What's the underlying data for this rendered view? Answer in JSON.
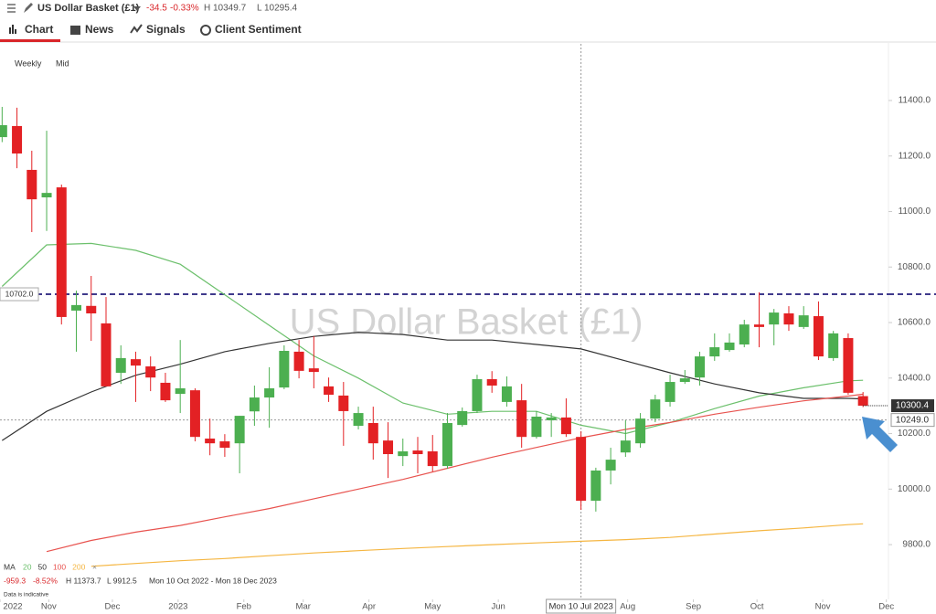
{
  "header": {
    "title": "US Dollar Basket (£1)",
    "change": "-34.5",
    "change_pct": "-0.33%",
    "high": "H 10349.7",
    "low": "L 10295.4"
  },
  "tabs": [
    "Chart",
    "News",
    "Signals",
    "Client Sentiment"
  ],
  "chart_data": {
    "type": "candlestick",
    "title": "US Dollar Basket (£1)",
    "interval": "Weekly",
    "price_basis": "Mid",
    "up_color": "#4caf50",
    "down_color": "#e32124",
    "x": [
      "2022-10-10",
      "2022-10-17",
      "2022-10-24",
      "2022-10-31",
      "2022-11-07",
      "2022-11-14",
      "2022-11-21",
      "2022-11-28",
      "2022-12-05",
      "2022-12-12",
      "2022-12-19",
      "2022-12-26",
      "2023-01-02",
      "2023-01-09",
      "2023-01-16",
      "2023-01-23",
      "2023-01-30",
      "2023-02-06",
      "2023-02-13",
      "2023-02-20",
      "2023-02-27",
      "2023-03-06",
      "2023-03-13",
      "2023-03-20",
      "2023-03-27",
      "2023-04-03",
      "2023-04-10",
      "2023-04-17",
      "2023-04-24",
      "2023-05-01",
      "2023-05-08",
      "2023-05-15",
      "2023-05-22",
      "2023-05-29",
      "2023-06-05",
      "2023-06-12",
      "2023-06-19",
      "2023-06-26",
      "2023-07-03",
      "2023-07-10",
      "2023-07-17",
      "2023-07-24",
      "2023-07-31",
      "2023-08-07",
      "2023-08-14",
      "2023-08-21",
      "2023-08-28",
      "2023-09-04",
      "2023-09-11",
      "2023-09-18",
      "2023-09-25",
      "2023-10-02",
      "2023-10-09",
      "2023-10-16",
      "2023-10-23",
      "2023-10-30",
      "2023-11-06",
      "2023-11-13",
      "2023-11-20"
    ],
    "open": [
      11268,
      11308,
      11150,
      11051,
      11087,
      10643,
      10660,
      10597,
      10419,
      10468,
      10442,
      10383,
      10343,
      10356,
      10182,
      10172,
      10165,
      10280,
      10330,
      10366,
      10495,
      10435,
      10370,
      10337,
      10228,
      10238,
      10175,
      10119,
      10139,
      10136,
      10083,
      10231,
      10281,
      10396,
      10314,
      10320,
      10188,
      10248,
      10258,
      10188,
      9958,
      10067,
      10132,
      10165,
      10254,
      10314,
      10386,
      10402,
      10478,
      10501,
      10521,
      10593,
      10593,
      10633,
      10584,
      10623,
      10472,
      10544,
      10334.9
    ],
    "close": [
      11311,
      11209,
      11044,
      11067,
      10620,
      10663,
      10633,
      10370,
      10472,
      10445,
      10402,
      10320,
      10363,
      10188,
      10165,
      10149,
      10264,
      10330,
      10363,
      10498,
      10426,
      10422,
      10340,
      10281,
      10274,
      10165,
      10126,
      10136,
      10126,
      10083,
      10238,
      10281,
      10396,
      10373,
      10370,
      10188,
      10261,
      10258,
      10198,
      9958,
      10067,
      10106,
      10175,
      10254,
      10323,
      10386,
      10399,
      10478,
      10511,
      10528,
      10593,
      10584,
      10636,
      10593,
      10626,
      10478,
      10561,
      10347,
      10300.4
    ],
    "high": [
      11377,
      11374,
      11219,
      11291,
      11097,
      10715,
      10768,
      10692,
      10518,
      10495,
      10478,
      10419,
      10537,
      10363,
      10254,
      10198,
      10264,
      10373,
      10439,
      10518,
      10537,
      10551,
      10402,
      10386,
      10297,
      10297,
      10241,
      10182,
      10188,
      10195,
      10274,
      10294,
      10412,
      10425,
      10406,
      10379,
      10281,
      10274,
      10327,
      10208,
      10077,
      10149,
      10248,
      10274,
      10340,
      10412,
      10429,
      10495,
      10561,
      10561,
      10610,
      10709,
      10649,
      10659,
      10659,
      10676,
      10570,
      10561,
      10349.7
    ],
    "low": [
      11250,
      11156,
      10926,
      10930,
      10593,
      10495,
      10534,
      10370,
      10379,
      10314,
      10353,
      10314,
      10274,
      10172,
      10122,
      10116,
      10057,
      10228,
      10221,
      10360,
      10399,
      10363,
      10314,
      10156,
      10215,
      10106,
      10040,
      10083,
      10057,
      10063,
      10073,
      10225,
      10274,
      10347,
      10297,
      10149,
      10182,
      10188,
      10188,
      9925,
      9919,
      10017,
      10116,
      10149,
      10241,
      10297,
      10379,
      10373,
      10462,
      10495,
      10511,
      10511,
      10518,
      10570,
      10577,
      10465,
      10462,
      10340,
      10295.4
    ],
    "moving_averages": {
      "label": "MA",
      "x": [
        "2022-10-10",
        "2022-10-31",
        "2022-11-21",
        "2022-12-12",
        "2023-01-02",
        "2023-01-23",
        "2023-02-13",
        "2023-03-06",
        "2023-03-27",
        "2023-04-17",
        "2023-05-08",
        "2023-05-29",
        "2023-06-19",
        "2023-07-10",
        "2023-07-31",
        "2023-08-21",
        "2023-09-11",
        "2023-10-02",
        "2023-10-23",
        "2023-11-13",
        "2023-11-20"
      ],
      "series": [
        {
          "name": "20",
          "color": "#6cc06c",
          "values": [
            10730,
            10880,
            10885,
            10860,
            10810,
            10700,
            10590,
            10480,
            10400,
            10310,
            10270,
            10280,
            10280,
            10230,
            10200,
            10240,
            10290,
            10335,
            10365,
            10390,
            10392
          ]
        },
        {
          "name": "50",
          "color": "#333333",
          "values": [
            10175,
            10280,
            10350,
            10410,
            10450,
            10495,
            10525,
            10550,
            10565,
            10557,
            10537,
            10537,
            10521,
            10505,
            10462,
            10419,
            10379,
            10347,
            10327,
            10327,
            10325
          ]
        },
        {
          "name": "100",
          "color": "#e8534f",
          "values": [
            null,
            9775,
            9815,
            9845,
            9869,
            9900,
            9930,
            9965,
            10000,
            10035,
            10075,
            10115,
            10150,
            10185,
            10215,
            10240,
            10270,
            10295,
            10318,
            10335,
            10342
          ]
        },
        {
          "name": "200",
          "color": "#f5b642",
          "values": [
            null,
            null,
            9722,
            9732,
            9742,
            9750,
            9760,
            9770,
            9778,
            9786,
            9793,
            9800,
            9806,
            9812,
            9818,
            9826,
            9838,
            9850,
            9860,
            9872,
            9875
          ]
        }
      ]
    },
    "reference_line": {
      "value": 10702,
      "label": "10702.0",
      "color": "#3f3a8c"
    },
    "last_price": 10300.4,
    "crosshair": {
      "price": {
        "value": 10249,
        "label": "10249.0"
      },
      "date": {
        "value": "2023-07-10",
        "label": "Mon 10 Jul 2023"
      }
    },
    "xlim": [
      "2022-10-09",
      "2023-12-02"
    ],
    "xticks": [
      {
        "value": "2022-10-09",
        "label": "2022"
      },
      {
        "value": "2022-11-01",
        "label": "Nov"
      },
      {
        "value": "2022-12-01",
        "label": "Dec"
      },
      {
        "value": "2023-01-01",
        "label": "2023"
      },
      {
        "value": "2023-02-01",
        "label": "Feb"
      },
      {
        "value": "2023-03-01",
        "label": "Mar"
      },
      {
        "value": "2023-04-01",
        "label": "Apr"
      },
      {
        "value": "2023-05-01",
        "label": "May"
      },
      {
        "value": "2023-06-01",
        "label": "Jun"
      },
      {
        "value": "2023-08-01",
        "label": "Aug"
      },
      {
        "value": "2023-09-01",
        "label": "Sep"
      },
      {
        "value": "2023-10-01",
        "label": "Oct"
      },
      {
        "value": "2023-11-01",
        "label": "Nov"
      },
      {
        "value": "2023-12-01",
        "label": "Dec"
      }
    ],
    "ylim": [
      9606,
      11604
    ],
    "yticks": [
      {
        "value": 9800,
        "label": "9800.0"
      },
      {
        "value": 10000,
        "label": "10000.0"
      },
      {
        "value": 10200,
        "label": "10200.0"
      },
      {
        "value": 10400,
        "label": "10400.0"
      },
      {
        "value": 10600,
        "label": "10600.0"
      },
      {
        "value": 10800,
        "label": "10800.0"
      },
      {
        "value": 11000,
        "label": "11000.0"
      },
      {
        "value": 11200,
        "label": "11200.0"
      },
      {
        "value": 11400,
        "label": "11400.0"
      }
    ]
  },
  "summary": {
    "change": "-959.3",
    "change_pct": "-8.52%",
    "high": "H 11373.7",
    "low": "L 9912.5",
    "range": "Mon 10 Oct 2022 - Mon 18 Dec 2023"
  },
  "note": "Data is indicative"
}
